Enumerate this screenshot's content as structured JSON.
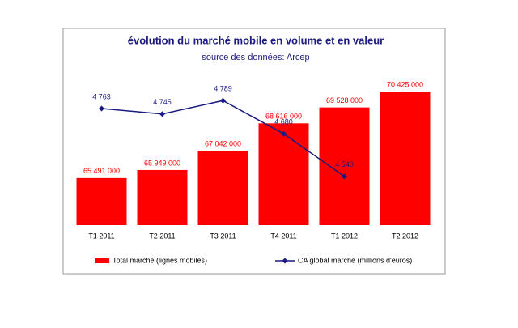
{
  "chart_data": {
    "type": "bar-line",
    "title": "évolution du marché mobile en volume et en valeur",
    "subtitle": "source des données: Arcep",
    "categories": [
      "T1 2011",
      "T2 2011",
      "T3 2011",
      "T4 2011",
      "T1 2012",
      "T2 2012"
    ],
    "series": [
      {
        "name": "Total marché (lignes mobiles)",
        "color": "#ff0000",
        "type": "bar",
        "values": [
          65491000,
          65949000,
          67042000,
          68616000,
          69528000,
          70425000
        ],
        "value_labels": [
          "65 491 000",
          "65 949 000",
          "67 042 000",
          "68 616 000",
          "69 528 000",
          "70 425 000"
        ]
      },
      {
        "name": "CA global marché (millions d'euros)",
        "color": "#1a1a80",
        "type": "line",
        "axis": "y2",
        "values": [
          4763,
          4745,
          4789,
          4680,
          4540,
          null
        ],
        "value_labels": [
          "4 763",
          "4 745",
          "4 789",
          "4 680",
          "4 540",
          null
        ]
      }
    ],
    "ylim": [
      62800000,
      71500000
    ],
    "y2lim": [
      4380,
      4880
    ]
  }
}
